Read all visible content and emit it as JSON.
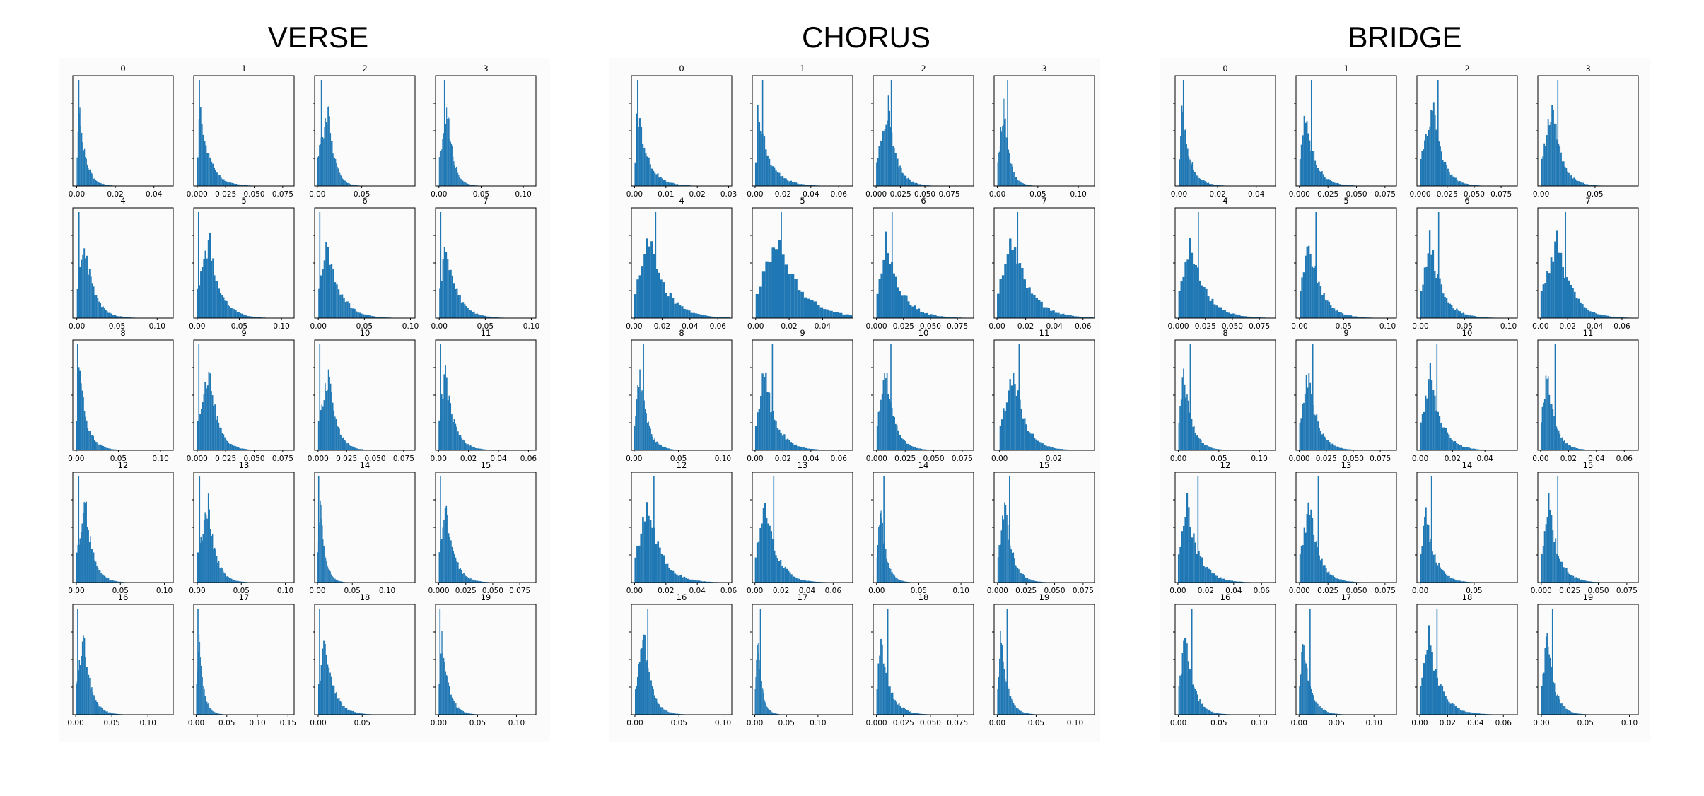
{
  "colors": {
    "bar": "#1f77b4",
    "axes": "#000000",
    "background": "#ffffff"
  },
  "chart_data": [
    {
      "type": "histogram-grid",
      "title": "VERSE",
      "subplots": [
        {
          "title": "0",
          "xticks": [
            "0.00",
            "0.02",
            "0.04"
          ],
          "xlim": [
            -0.002,
            0.05
          ],
          "mode": 0.001,
          "spike": 0.0008,
          "scale": 0.004
        },
        {
          "title": "1",
          "xticks": [
            "0.000",
            "0.025",
            "0.050",
            "0.075"
          ],
          "xlim": [
            -0.003,
            0.085
          ],
          "mode": 0.002,
          "spike": 0.0015,
          "scale": 0.01
        },
        {
          "title": "2",
          "xticks": [
            "0.00",
            "0.05"
          ],
          "xlim": [
            -0.003,
            0.11
          ],
          "mode": 0.012,
          "spike": 0.004,
          "scale": 0.008
        },
        {
          "title": "3",
          "xticks": [
            "0.00",
            "0.05",
            "0.10"
          ],
          "xlim": [
            -0.004,
            0.115
          ],
          "mode": 0.01,
          "spike": 0.006,
          "scale": 0.008
        },
        {
          "title": "4",
          "xticks": [
            "0.00",
            "0.05",
            "0.10"
          ],
          "xlim": [
            -0.005,
            0.12
          ],
          "mode": 0.008,
          "spike": 0.002,
          "scale": 0.014
        },
        {
          "title": "5",
          "xticks": [
            "0.00",
            "0.05",
            "0.10"
          ],
          "xlim": [
            -0.004,
            0.115
          ],
          "mode": 0.014,
          "spike": 0.001,
          "scale": 0.015
        },
        {
          "title": "6",
          "xticks": [
            "0.00",
            "0.05",
            "0.10"
          ],
          "xlim": [
            -0.004,
            0.105
          ],
          "mode": 0.008,
          "spike": 0.001,
          "scale": 0.016
        },
        {
          "title": "7",
          "xticks": [
            "0.00",
            "0.05",
            "0.10"
          ],
          "xlim": [
            -0.004,
            0.105
          ],
          "mode": 0.006,
          "spike": 0.001,
          "scale": 0.014
        },
        {
          "title": "8",
          "xticks": [
            "0.00",
            "0.05",
            "0.10"
          ],
          "xlim": [
            -0.004,
            0.115
          ],
          "mode": 0.003,
          "spike": 0.001,
          "scale": 0.011
        },
        {
          "title": "9",
          "xticks": [
            "0.000",
            "0.025",
            "0.050",
            "0.075"
          ],
          "xlim": [
            -0.003,
            0.085
          ],
          "mode": 0.01,
          "spike": 0.001,
          "scale": 0.009
        },
        {
          "title": "10",
          "xticks": [
            "0.000",
            "0.025",
            "0.050",
            "0.075"
          ],
          "xlim": [
            -0.003,
            0.085
          ],
          "mode": 0.009,
          "spike": 0.001,
          "scale": 0.008
        },
        {
          "title": "11",
          "xticks": [
            "0.00",
            "0.02",
            "0.04",
            "0.06"
          ],
          "xlim": [
            -0.002,
            0.065
          ],
          "mode": 0.004,
          "spike": 0.001,
          "scale": 0.007
        },
        {
          "title": "12",
          "xticks": [
            "0.00",
            "0.05",
            "0.10"
          ],
          "xlim": [
            -0.004,
            0.11
          ],
          "mode": 0.01,
          "spike": 0.002,
          "scale": 0.01
        },
        {
          "title": "13",
          "xticks": [
            "0.00",
            "0.05",
            "0.10"
          ],
          "xlim": [
            -0.004,
            0.11
          ],
          "mode": 0.012,
          "spike": 0.002,
          "scale": 0.01
        },
        {
          "title": "14",
          "xticks": [
            "0.00",
            "0.05",
            "0.10"
          ],
          "xlim": [
            -0.004,
            0.14
          ],
          "mode": 0.004,
          "spike": 0.001,
          "scale": 0.008
        },
        {
          "title": "15",
          "xticks": [
            "0.000",
            "0.025",
            "0.050",
            "0.075"
          ],
          "xlim": [
            -0.003,
            0.09
          ],
          "mode": 0.006,
          "spike": 0.001,
          "scale": 0.009
        },
        {
          "title": "16",
          "xticks": [
            "0.00",
            "0.05",
            "0.10"
          ],
          "xlim": [
            -0.004,
            0.135
          ],
          "mode": 0.01,
          "spike": 0.002,
          "scale": 0.012
        },
        {
          "title": "17",
          "xticks": [
            "0.00",
            "0.05",
            "0.10",
            "0.15"
          ],
          "xlim": [
            -0.004,
            0.16
          ],
          "mode": 0.004,
          "spike": 0.002,
          "scale": 0.009
        },
        {
          "title": "18",
          "xticks": [
            "0.00",
            "0.05"
          ],
          "xlim": [
            -0.004,
            0.11
          ],
          "mode": 0.006,
          "spike": 0.001,
          "scale": 0.012
        },
        {
          "title": "19",
          "xticks": [
            "0.00",
            "0.05",
            "0.10"
          ],
          "xlim": [
            -0.004,
            0.125
          ],
          "mode": 0.004,
          "spike": 0.001,
          "scale": 0.01
        }
      ]
    },
    {
      "type": "histogram-grid",
      "title": "CHORUS",
      "subplots": [
        {
          "title": "0",
          "xticks": [
            "0.00",
            "0.01",
            "0.02",
            "0.03"
          ],
          "xlim": [
            -0.001,
            0.031
          ],
          "mode": 0.0005,
          "spike": 0.0008,
          "scale": 0.004
        },
        {
          "title": "1",
          "xticks": [
            "0.00",
            "0.02",
            "0.04",
            "0.06"
          ],
          "xlim": [
            -0.002,
            0.07
          ],
          "mode": 0.001,
          "spike": 0.005,
          "scale": 0.01
        },
        {
          "title": "2",
          "xticks": [
            "0.000",
            "0.025",
            "0.050",
            "0.075"
          ],
          "xlim": [
            -0.003,
            0.1
          ],
          "mode": 0.012,
          "spike": 0.015,
          "scale": 0.01
        },
        {
          "title": "3",
          "xticks": [
            "0.00",
            "0.05",
            "0.10"
          ],
          "xlim": [
            -0.004,
            0.12
          ],
          "mode": 0.008,
          "spike": 0.012,
          "scale": 0.008
        },
        {
          "title": "4",
          "xticks": [
            "0.00",
            "0.02",
            "0.04",
            "0.06"
          ],
          "xlim": [
            -0.002,
            0.07
          ],
          "mode": 0.01,
          "spike": 0.015,
          "scale": 0.014
        },
        {
          "title": "5",
          "xticks": [
            "0.00",
            "0.02",
            "0.04"
          ],
          "xlim": [
            -0.002,
            0.058
          ],
          "mode": 0.012,
          "spike": 0.015,
          "scale": 0.016
        },
        {
          "title": "6",
          "xticks": [
            "0.000",
            "0.025",
            "0.050",
            "0.075"
          ],
          "xlim": [
            -0.003,
            0.09
          ],
          "mode": 0.008,
          "spike": 0.014,
          "scale": 0.016
        },
        {
          "title": "7",
          "xticks": [
            "0.00",
            "0.02",
            "0.04",
            "0.06"
          ],
          "xlim": [
            -0.002,
            0.068
          ],
          "mode": 0.01,
          "spike": 0.014,
          "scale": 0.014
        },
        {
          "title": "8",
          "xticks": [
            "0.00",
            "0.05",
            "0.10"
          ],
          "xlim": [
            -0.003,
            0.11
          ],
          "mode": 0.006,
          "spike": 0.01,
          "scale": 0.01
        },
        {
          "title": "9",
          "xticks": [
            "0.00",
            "0.02",
            "0.04",
            "0.06"
          ],
          "xlim": [
            -0.002,
            0.07
          ],
          "mode": 0.006,
          "spike": 0.012,
          "scale": 0.01
        },
        {
          "title": "10",
          "xticks": [
            "0.000",
            "0.025",
            "0.050",
            "0.075"
          ],
          "xlim": [
            -0.003,
            0.085
          ],
          "mode": 0.008,
          "spike": 0.012,
          "scale": 0.009
        },
        {
          "title": "11",
          "xticks": [
            "0.00",
            "0.02"
          ],
          "xlim": [
            -0.002,
            0.035
          ],
          "mode": 0.005,
          "spike": 0.007,
          "scale": 0.005
        },
        {
          "title": "12",
          "xticks": [
            "0.00",
            "0.02",
            "0.04",
            "0.06"
          ],
          "xlim": [
            -0.002,
            0.062
          ],
          "mode": 0.008,
          "spike": 0.012,
          "scale": 0.01
        },
        {
          "title": "13",
          "xticks": [
            "0.00",
            "0.02",
            "0.04",
            "0.06"
          ],
          "xlim": [
            -0.002,
            0.075
          ],
          "mode": 0.008,
          "spike": 0.014,
          "scale": 0.01
        },
        {
          "title": "14",
          "xticks": [
            "0.00",
            "0.05",
            "0.10"
          ],
          "xlim": [
            -0.004,
            0.115
          ],
          "mode": 0.004,
          "spike": 0.008,
          "scale": 0.008
        },
        {
          "title": "15",
          "xticks": [
            "0.000",
            "0.025",
            "0.050",
            "0.075"
          ],
          "xlim": [
            -0.003,
            0.085
          ],
          "mode": 0.006,
          "spike": 0.01,
          "scale": 0.008
        },
        {
          "title": "16",
          "xticks": [
            "0.00",
            "0.05",
            "0.10"
          ],
          "xlim": [
            -0.004,
            0.11
          ],
          "mode": 0.01,
          "spike": 0.014,
          "scale": 0.01
        },
        {
          "title": "17",
          "xticks": [
            "0.00",
            "0.05",
            "0.10"
          ],
          "xlim": [
            -0.004,
            0.155
          ],
          "mode": 0.004,
          "spike": 0.008,
          "scale": 0.008
        },
        {
          "title": "18",
          "xticks": [
            "0.000",
            "0.025",
            "0.050",
            "0.075"
          ],
          "xlim": [
            -0.003,
            0.09
          ],
          "mode": 0.003,
          "spike": 0.01,
          "scale": 0.01
        },
        {
          "title": "19",
          "xticks": [
            "0.00",
            "0.05",
            "0.10"
          ],
          "xlim": [
            -0.004,
            0.125
          ],
          "mode": 0.004,
          "spike": 0.012,
          "scale": 0.01
        }
      ]
    },
    {
      "type": "histogram-grid",
      "title": "BRIDGE",
      "subplots": [
        {
          "title": "0",
          "xticks": [
            "0.00",
            "0.02",
            "0.04"
          ],
          "xlim": [
            -0.002,
            0.05
          ],
          "mode": 0.001,
          "spike": 0.002,
          "scale": 0.005
        },
        {
          "title": "1",
          "xticks": [
            "0.000",
            "0.025",
            "0.050",
            "0.075"
          ],
          "xlim": [
            -0.003,
            0.085
          ],
          "mode": 0.004,
          "spike": 0.01,
          "scale": 0.01
        },
        {
          "title": "2",
          "xticks": [
            "0.000",
            "0.025",
            "0.050",
            "0.075"
          ],
          "xlim": [
            -0.003,
            0.09
          ],
          "mode": 0.012,
          "spike": 0.016,
          "scale": 0.01
        },
        {
          "title": "3",
          "xticks": [
            "0.00",
            "0.05"
          ],
          "xlim": [
            -0.003,
            0.09
          ],
          "mode": 0.01,
          "spike": 0.015,
          "scale": 0.01
        },
        {
          "title": "4",
          "xticks": [
            "0.000",
            "0.025",
            "0.050",
            "0.075"
          ],
          "xlim": [
            -0.003,
            0.09
          ],
          "mode": 0.01,
          "spike": 0.018,
          "scale": 0.016
        },
        {
          "title": "5",
          "xticks": [
            "0.00",
            "0.05",
            "0.10"
          ],
          "xlim": [
            -0.004,
            0.11
          ],
          "mode": 0.01,
          "spike": 0.018,
          "scale": 0.016
        },
        {
          "title": "6",
          "xticks": [
            "0.00",
            "0.05",
            "0.10"
          ],
          "xlim": [
            -0.004,
            0.11
          ],
          "mode": 0.01,
          "spike": 0.02,
          "scale": 0.016
        },
        {
          "title": "7",
          "xticks": [
            "0.00",
            "0.02",
            "0.04",
            "0.06"
          ],
          "xlim": [
            -0.002,
            0.072
          ],
          "mode": 0.012,
          "spike": 0.018,
          "scale": 0.012
        },
        {
          "title": "8",
          "xticks": [
            "0.00",
            "0.05",
            "0.10"
          ],
          "xlim": [
            -0.004,
            0.12
          ],
          "mode": 0.006,
          "spike": 0.014,
          "scale": 0.012
        },
        {
          "title": "9",
          "xticks": [
            "0.000",
            "0.025",
            "0.050",
            "0.075"
          ],
          "xlim": [
            -0.003,
            0.09
          ],
          "mode": 0.008,
          "spike": 0.012,
          "scale": 0.01
        },
        {
          "title": "10",
          "xticks": [
            "0.00",
            "0.02",
            "0.04"
          ],
          "xlim": [
            -0.002,
            0.06
          ],
          "mode": 0.006,
          "spike": 0.01,
          "scale": 0.008
        },
        {
          "title": "11",
          "xticks": [
            "0.00",
            "0.02",
            "0.04",
            "0.06"
          ],
          "xlim": [
            -0.002,
            0.07
          ],
          "mode": 0.004,
          "spike": 0.01,
          "scale": 0.007
        },
        {
          "title": "12",
          "xticks": [
            "0.00",
            "0.02",
            "0.04",
            "0.06"
          ],
          "xlim": [
            -0.002,
            0.07
          ],
          "mode": 0.006,
          "spike": 0.014,
          "scale": 0.01
        },
        {
          "title": "13",
          "xticks": [
            "0.000",
            "0.025",
            "0.050",
            "0.075"
          ],
          "xlim": [
            -0.003,
            0.085
          ],
          "mode": 0.008,
          "spike": 0.016,
          "scale": 0.01
        },
        {
          "title": "14",
          "xticks": [
            "0.00",
            "0.05"
          ],
          "xlim": [
            -0.003,
            0.09
          ],
          "mode": 0.004,
          "spike": 0.01,
          "scale": 0.01
        },
        {
          "title": "15",
          "xticks": [
            "0.000",
            "0.025",
            "0.050",
            "0.075"
          ],
          "xlim": [
            -0.003,
            0.085
          ],
          "mode": 0.006,
          "spike": 0.014,
          "scale": 0.01
        },
        {
          "title": "16",
          "xticks": [
            "0.00",
            "0.05",
            "0.10"
          ],
          "xlim": [
            -0.004,
            0.12
          ],
          "mode": 0.008,
          "spike": 0.016,
          "scale": 0.012
        },
        {
          "title": "17",
          "xticks": [
            "0.00",
            "0.05",
            "0.10"
          ],
          "xlim": [
            -0.004,
            0.13
          ],
          "mode": 0.004,
          "spike": 0.014,
          "scale": 0.012
        },
        {
          "title": "18",
          "xticks": [
            "0.00",
            "0.02",
            "0.04",
            "0.06"
          ],
          "xlim": [
            -0.002,
            0.07
          ],
          "mode": 0.006,
          "spike": 0.012,
          "scale": 0.01
        },
        {
          "title": "19",
          "xticks": [
            "0.00",
            "0.05",
            "0.10"
          ],
          "xlim": [
            -0.004,
            0.11
          ],
          "mode": 0.006,
          "spike": 0.012,
          "scale": 0.01
        }
      ]
    }
  ]
}
